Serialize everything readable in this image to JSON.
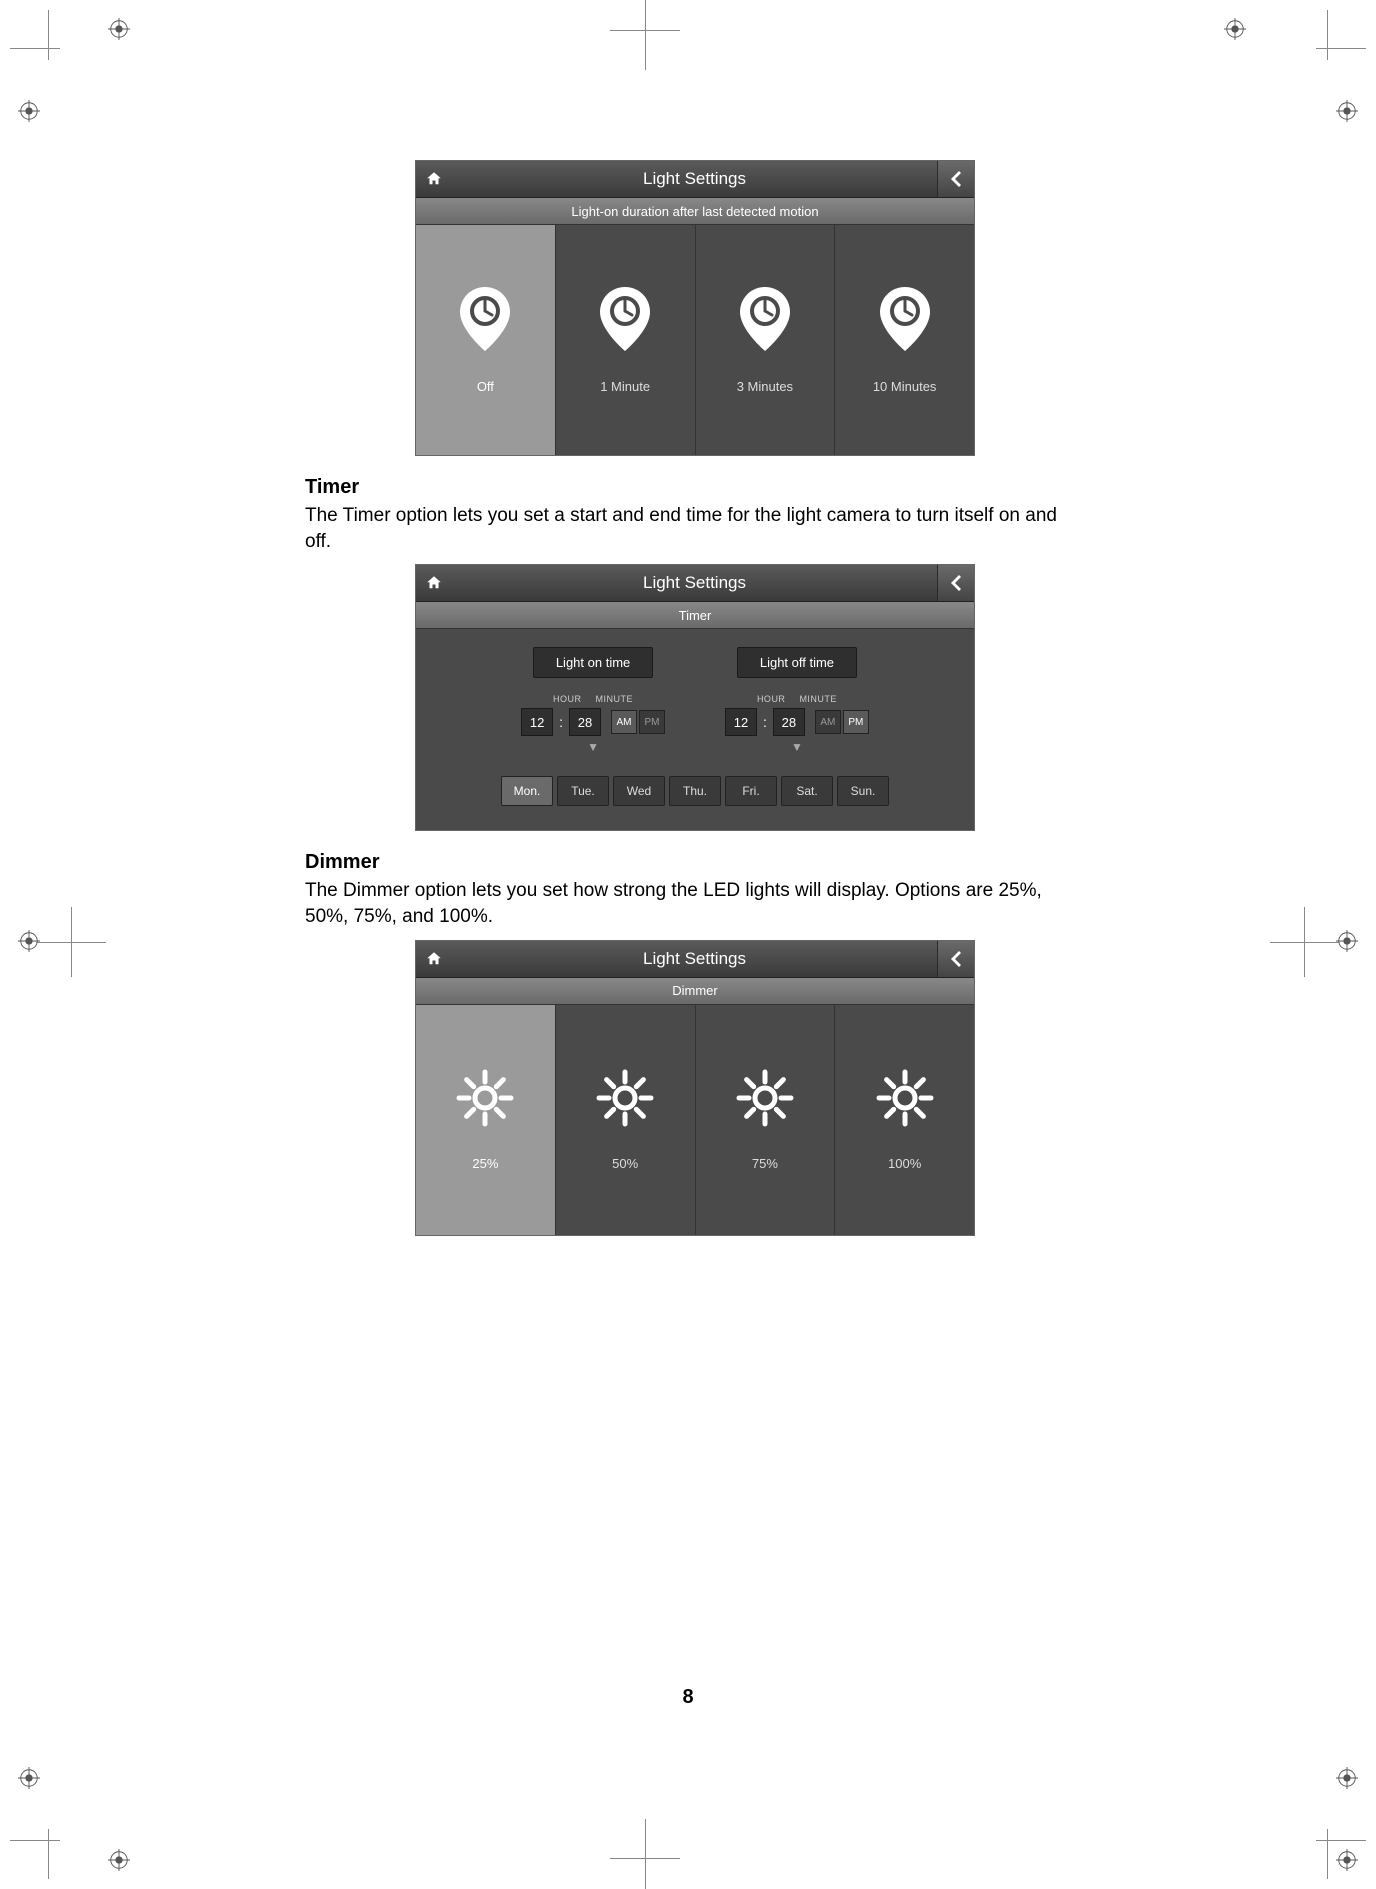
{
  "page_number": "8",
  "colors": {
    "page_bg": "#ffffff",
    "panel_bg": "#4a4a4a",
    "panel_selected": "#9a9a9a",
    "titlebar_from": "#5a5a5a",
    "titlebar_to": "#3a3a3a",
    "subtitle_from": "#888888",
    "subtitle_to": "#6a6a6a",
    "divider": "#333333",
    "text_light": "#dddddd",
    "text_white": "#ffffff",
    "dark_button": "#2f2f2f"
  },
  "motion_panel": {
    "title": "Light Settings",
    "subtitle": "Light-on duration after last detected motion",
    "options": [
      {
        "label": "Off",
        "selected": true
      },
      {
        "label": "1 Minute",
        "selected": false
      },
      {
        "label": "3 Minutes",
        "selected": false
      },
      {
        "label": "10 Minutes",
        "selected": false
      }
    ]
  },
  "timer_section": {
    "heading": "Timer",
    "text": "The Timer option lets you set a start and end time for the light camera to turn itself on and off."
  },
  "timer_panel": {
    "title": "Light Settings",
    "subtitle": "Timer",
    "on_label": "Light on time",
    "off_label": "Light off time",
    "hour_label": "HOUR",
    "minute_label": "MINUTE",
    "on_time": {
      "hour": "12",
      "minute": "28",
      "am_active": true,
      "pm_active": false
    },
    "off_time": {
      "hour": "12",
      "minute": "28",
      "am_active": false,
      "pm_active": true
    },
    "am_text": "AM",
    "pm_text": "PM",
    "days": [
      {
        "label": "Mon.",
        "active": true
      },
      {
        "label": "Tue.",
        "active": false
      },
      {
        "label": "Wed",
        "active": false
      },
      {
        "label": "Thu.",
        "active": false
      },
      {
        "label": "Fri.",
        "active": false
      },
      {
        "label": "Sat.",
        "active": false
      },
      {
        "label": "Sun.",
        "active": false
      }
    ]
  },
  "dimmer_section": {
    "heading": "Dimmer",
    "text": "The Dimmer option lets you set how strong the LED lights will display. Options are 25%, 50%, 75%, and 100%."
  },
  "dimmer_panel": {
    "title": "Light Settings",
    "subtitle": "Dimmer",
    "options": [
      {
        "label": "25%",
        "selected": true
      },
      {
        "label": "50%",
        "selected": false
      },
      {
        "label": "75%",
        "selected": false
      },
      {
        "label": "100%",
        "selected": false
      }
    ]
  }
}
